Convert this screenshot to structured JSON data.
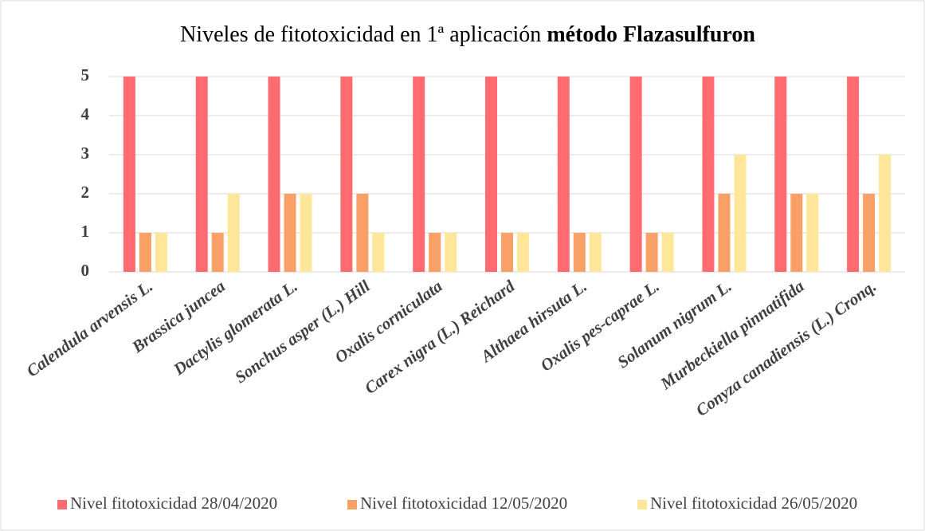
{
  "chart_data": {
    "type": "bar",
    "title_parts": [
      "Niveles de fitotoxicidad en 1ª aplicación",
      "método Flazasulfuron"
    ],
    "categories": [
      "Calendula arvensis L.",
      "Brassica juncea",
      "Dactylis glomerata L.",
      "Sonchus asper (L.) Hill",
      "Oxalis corniculata",
      "Carex nigra (L.) Reichard",
      "Althaea hirsuta L.",
      "Oxalis pes-caprae L.",
      "Solanum nigrum L.",
      "Murbeckiella pinnatifida",
      "Conyza canadiensis (L.) Cronq."
    ],
    "series": [
      {
        "name": "Nivel fitotoxicidad 28/04/2020",
        "color": "#ff6b70",
        "values": [
          5,
          5,
          5,
          5,
          5,
          5,
          5,
          5,
          5,
          5,
          5
        ]
      },
      {
        "name": "Nivel fitotoxicidad 12/05/2020",
        "color": "#f9a066",
        "values": [
          1,
          1,
          2,
          2,
          1,
          1,
          1,
          1,
          2,
          2,
          2
        ]
      },
      {
        "name": "Nivel fitotoxicidad 26/05/2020",
        "color": "#ffe699",
        "values": [
          1,
          2,
          2,
          1,
          1,
          1,
          1,
          1,
          3,
          2,
          3
        ]
      }
    ],
    "ylim": [
      0,
      5
    ],
    "yticks": [
      0,
      1,
      2,
      3,
      4,
      5
    ],
    "grid": true,
    "legend": "bottom"
  }
}
